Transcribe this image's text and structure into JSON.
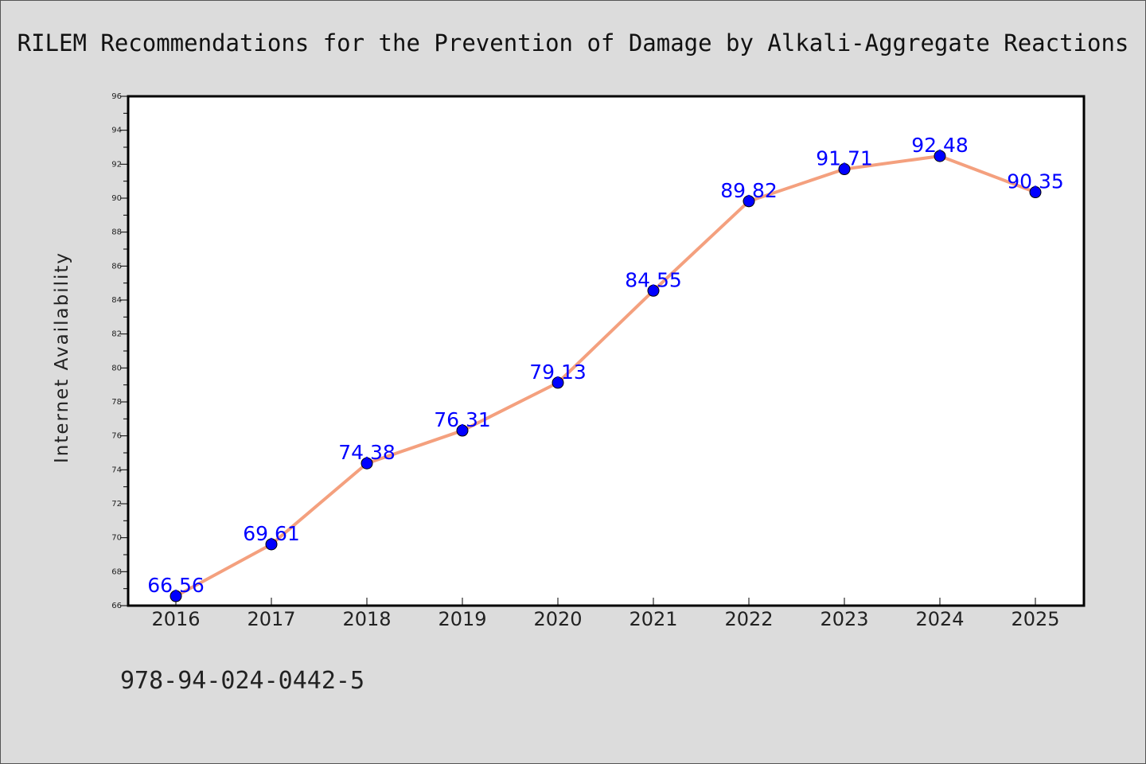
{
  "footer_text": "978-94-024-0442-5",
  "colors": {
    "background": "#dcdcdc",
    "plot_background": "#ffffff",
    "line": "#f4a07e",
    "marker": "#0000ff",
    "data_label": "#0000ff"
  },
  "chart_data": {
    "type": "line",
    "title": "RILEM Recommendations for the Prevention of Damage by Alkali-Aggregate Reactions",
    "xlabel": "",
    "ylabel": "Internet Availability",
    "categories": [
      "2016",
      "2017",
      "2018",
      "2019",
      "2020",
      "2021",
      "2022",
      "2023",
      "2024",
      "2025"
    ],
    "series": [
      {
        "values": [
          66.56,
          69.61,
          74.38,
          76.31,
          79.13,
          84.55,
          89.82,
          91.71,
          92.48,
          90.35
        ],
        "labels": [
          "66.56",
          "69.61",
          "74.38",
          "76.31",
          "79.13",
          "84.55",
          "89.82",
          "91.71",
          "92.48",
          "90.35"
        ]
      }
    ],
    "ylim": [
      66,
      96
    ],
    "y_ticks": [
      "66",
      "68",
      "70",
      "72",
      "74",
      "76",
      "78",
      "80",
      "82",
      "84",
      "86",
      "88",
      "90",
      "92",
      "94",
      "96"
    ],
    "grid": false,
    "legend": "none"
  }
}
